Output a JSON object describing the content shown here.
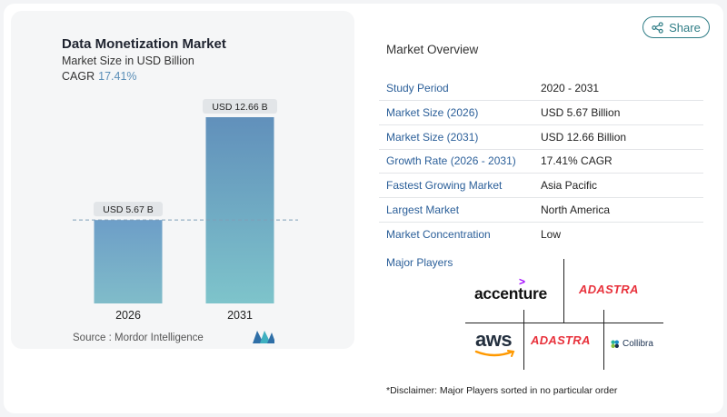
{
  "chart_data": {
    "type": "bar",
    "title": "Data Monetization Market",
    "subtitle": "Market Size in USD Billion",
    "cagr_label": "CAGR",
    "cagr_value": "17.41%",
    "categories": [
      "2026",
      "2031"
    ],
    "values": [
      5.67,
      12.66
    ],
    "data_labels": [
      "USD 5.67 B",
      "USD 12.66 B"
    ],
    "ylim": [
      0,
      12.66
    ],
    "reference_line": 5.67,
    "bar_colors": [
      [
        "#6d9ec8",
        "#80bcc9"
      ],
      [
        "#6190bb",
        "#7ec4cb"
      ]
    ],
    "grid": false,
    "source": "Source :  Mordor Intelligence"
  },
  "header": {
    "share_label": "Share"
  },
  "overview": {
    "title": "Market Overview",
    "rows": [
      {
        "label": "Study Period",
        "value": "2020 - 2031"
      },
      {
        "label": "Market Size (2026)",
        "value": "USD 5.67 Billion"
      },
      {
        "label": "Market Size (2031)",
        "value": "USD 12.66 Billion"
      },
      {
        "label": "Growth Rate (2026 - 2031)",
        "value": "17.41% CAGR"
      },
      {
        "label": "Fastest Growing Market",
        "value": "Asia Pacific"
      },
      {
        "label": "Largest Market",
        "value": "North America"
      },
      {
        "label": "Market Concentration",
        "value": "Low"
      }
    ]
  },
  "players": {
    "title": "Major Players",
    "logos": [
      "accenture",
      "ADASTRA",
      "aws",
      "ADASTRA",
      "Collibra"
    ],
    "logo_mark": ">"
  },
  "disclaimer": "*Disclaimer: Major Players sorted in no particular order",
  "colors": {
    "label_blue": "#2b5f99",
    "share_teal": "#2f7d86",
    "adastra_red": "#e8323c",
    "accenture_purple": "#a100ff"
  }
}
